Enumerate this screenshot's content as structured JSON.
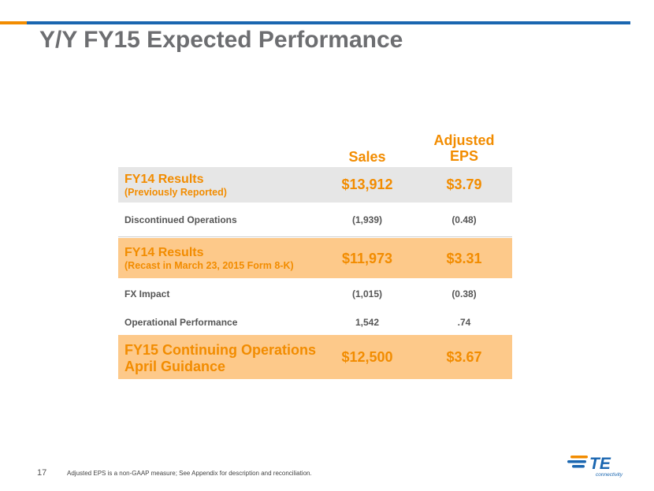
{
  "page": {
    "title": "Y/Y FY15 Expected Performance",
    "page_number": "17",
    "footnote": "Adjusted EPS is a non-GAAP measure; See Appendix for description and reconciliation."
  },
  "table": {
    "headers": {
      "sales": "Sales",
      "eps_line1": "Adjusted",
      "eps_line2": "EPS"
    },
    "rows": [
      {
        "label": "FY14 Results",
        "sublabel": "(Previously Reported)",
        "sales": "$13,912",
        "eps": "$3.79"
      },
      {
        "label": "Discontinued Operations",
        "sales": "(1,939)",
        "eps": "(0.48)"
      },
      {
        "label": "FY14 Results",
        "sublabel": "(Recast in March 23, 2015 Form 8-K)",
        "sales": "$11,973",
        "eps": "$3.31"
      },
      {
        "label": "FX Impact",
        "sales": "(1,015)",
        "eps": "(0.38)"
      },
      {
        "label": "Operational Performance",
        "sales": "1,542",
        "eps": ".74"
      },
      {
        "label": "FY15 Continuing Operations",
        "sublabel": "April Guidance",
        "sales": "$12,500",
        "eps": "$3.67"
      }
    ]
  },
  "logo": {
    "text": "TE",
    "subtext": "connectivity",
    "color": "#f28c00",
    "text_color": "#1a66b0"
  },
  "colors": {
    "accent_orange": "#f28c00",
    "accent_blue": "#1a66b0",
    "row_gray": "#e6e6e6",
    "row_orange": "#fdc98a"
  }
}
